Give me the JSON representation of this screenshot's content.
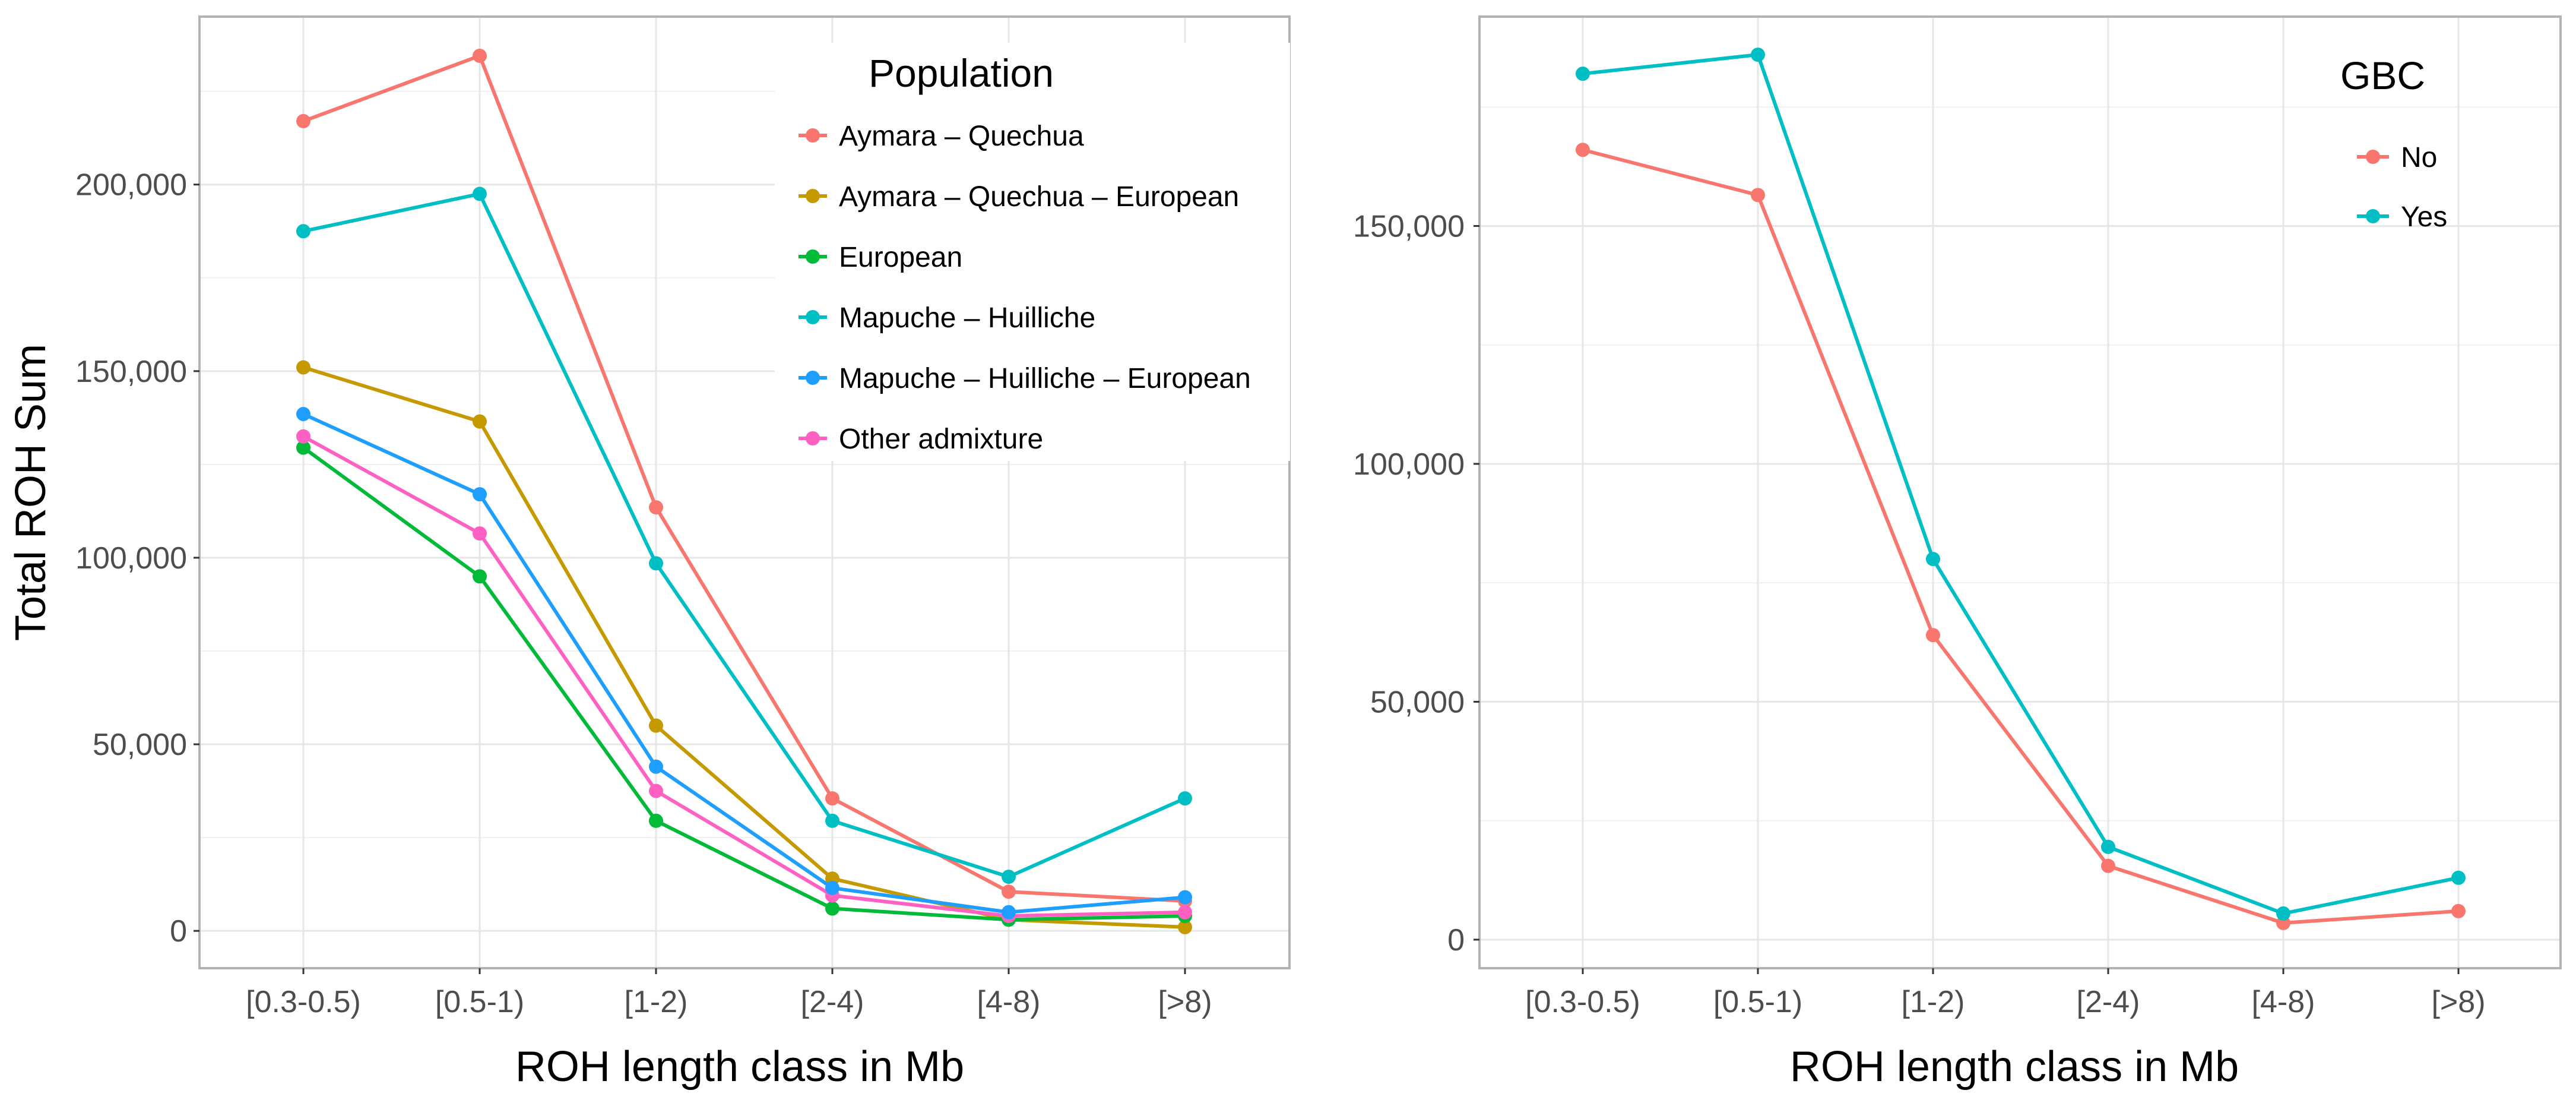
{
  "chart_data": [
    {
      "type": "line",
      "categories": [
        "[0.3-0.5)",
        "[0.5-1)",
        "[1-2)",
        "[2-4)",
        "[4-8)",
        "[>8)"
      ],
      "xlabel": "ROH length class in Mb",
      "ylabel": "Total ROH Sum",
      "ylim": [
        -10000,
        245000
      ],
      "yticks": [
        0,
        50000,
        100000,
        150000,
        200000
      ],
      "ytick_labels": [
        "0",
        "50,000",
        "100,000",
        "150,000",
        "200,000"
      ],
      "grid": true,
      "legend": {
        "title": "Population",
        "position": "top-right",
        "background": true,
        "order": [
          "Aymara – Quechua",
          "Aymara – Quechua – European",
          "European",
          "Mapuche – Huilliche",
          "Mapuche – Huilliche – European",
          "Other admixture"
        ]
      },
      "series": [
        {
          "name": "Aymara – Quechua",
          "color": "#F8766D",
          "values": [
            217000,
            234500,
            113500,
            35500,
            10500,
            8000
          ]
        },
        {
          "name": "Aymara – Quechua – European",
          "color": "#C49A00",
          "values": [
            151000,
            136500,
            55000,
            14000,
            3000,
            1000
          ]
        },
        {
          "name": "European",
          "color": "#00BA38",
          "values": [
            129500,
            95000,
            29500,
            6000,
            3000,
            4000
          ]
        },
        {
          "name": "Other admixture",
          "color": "#FF61C3",
          "values": [
            132500,
            106500,
            37500,
            9500,
            4000,
            5000
          ]
        },
        {
          "name": "Mapuche – Huilliche – European",
          "color": "#1E9FFF",
          "values": [
            138500,
            117000,
            44000,
            11500,
            5000,
            9000
          ]
        },
        {
          "name": "Mapuche – Huilliche",
          "color": "#00BFC4",
          "values": [
            187500,
            197500,
            98500,
            29500,
            14500,
            35500
          ]
        }
      ]
    },
    {
      "type": "line",
      "categories": [
        "[0.3-0.5)",
        "[0.5-1)",
        "[1-2)",
        "[2-4)",
        "[4-8)",
        "[>8)"
      ],
      "xlabel": "ROH length class in Mb",
      "ylabel": "",
      "ylim": [
        -6000,
        194000
      ],
      "yticks": [
        0,
        50000,
        100000,
        150000
      ],
      "ytick_labels": [
        "0",
        "50,000",
        "100,000",
        "150,000"
      ],
      "grid": true,
      "legend": {
        "title": "GBC",
        "position": "top-right",
        "background": false,
        "order": [
          "No",
          "Yes"
        ]
      },
      "series": [
        {
          "name": "No",
          "color": "#F8766D",
          "values": [
            166000,
            156500,
            64000,
            15500,
            3500,
            6000
          ]
        },
        {
          "name": "Yes",
          "color": "#00BFC4",
          "values": [
            182000,
            186000,
            80000,
            19500,
            5500,
            13000
          ]
        }
      ]
    }
  ]
}
